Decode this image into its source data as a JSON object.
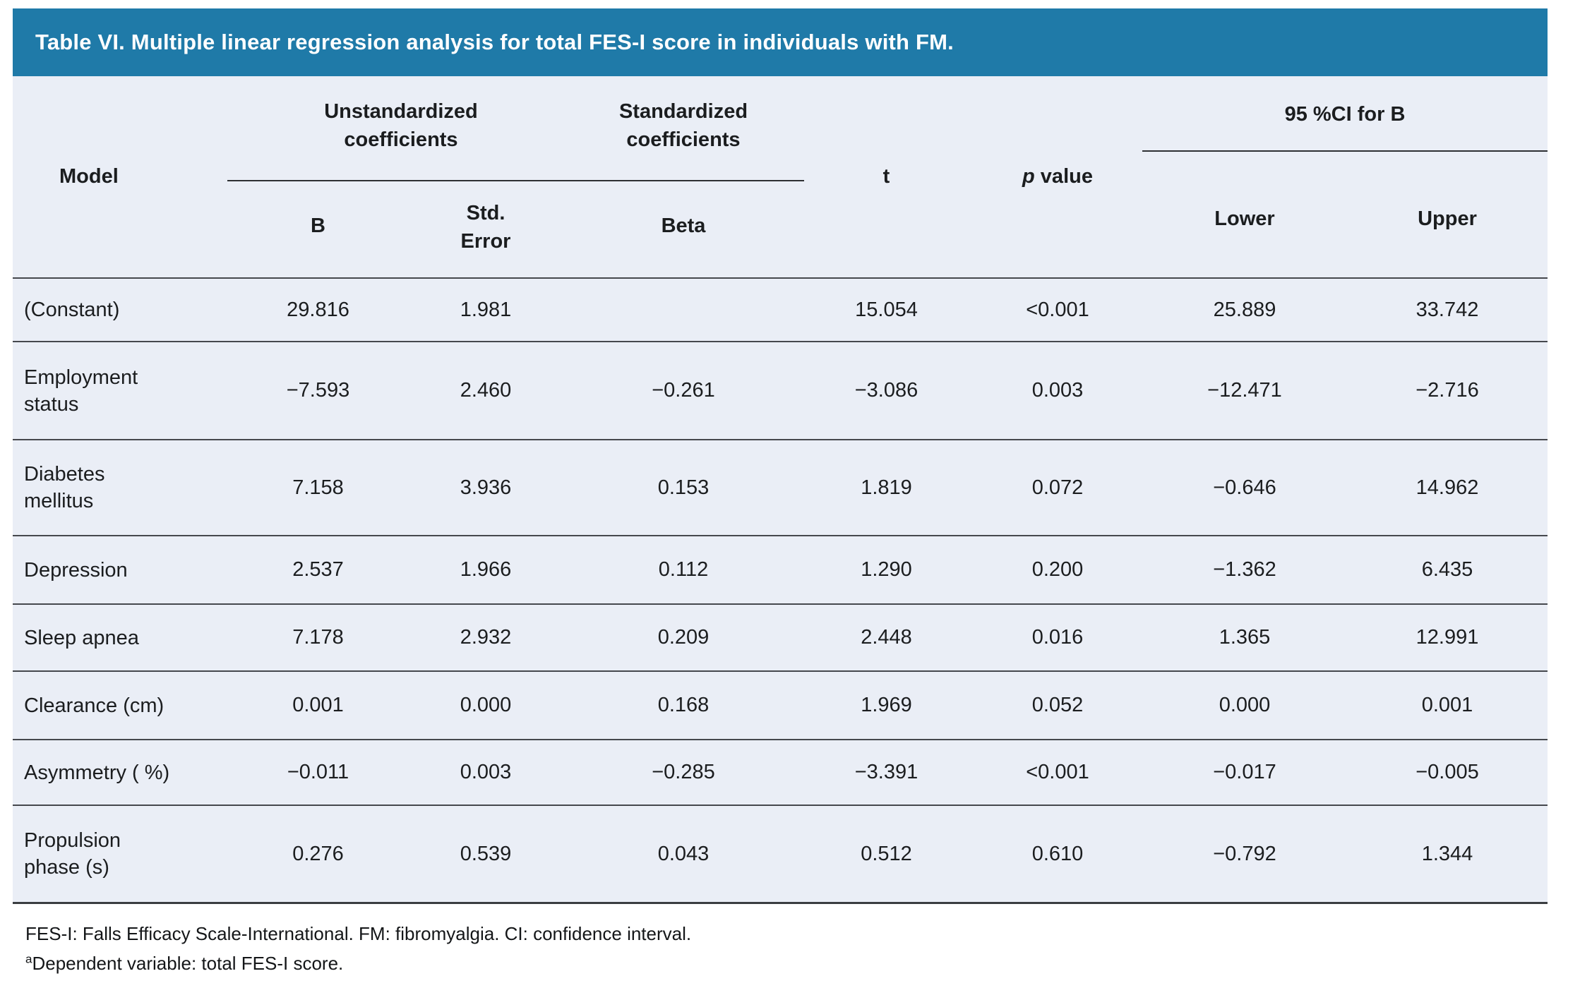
{
  "title": "Table VI. Multiple linear regression analysis for total FES-I score in individuals with FM.",
  "colors": {
    "accent_blue": "#1f7aa8",
    "table_background": "#eaeef6",
    "row_separator": "#45484d",
    "title_text": "#ffffff"
  },
  "header": {
    "model": "Model",
    "unstandardized_group": "Unstandardized\ncoefficients",
    "standardized_group": "Standardized\ncoefficients",
    "t": "t",
    "p_symbol": "p",
    "p_rest": " value",
    "ci_group": "95 %CI for B",
    "b": "B",
    "std_error": "Std.\nError",
    "beta": "Beta",
    "lower": "Lower",
    "upper": "Upper"
  },
  "chart_data": {
    "type": "table",
    "title": "Table VI. Multiple linear regression analysis for total FES-I score in individuals with FM.",
    "columns": [
      "Model",
      "B",
      "Std. Error",
      "Beta",
      "t",
      "p value",
      "95 %CI for B Lower",
      "95 %CI for B Upper"
    ],
    "rows": [
      [
        "(Constant)",
        "29.816",
        "1.981",
        "",
        "15.054",
        "<0.001",
        "25.889",
        "33.742"
      ],
      [
        "Employment status",
        "−7.593",
        "2.460",
        "−0.261",
        "−3.086",
        "0.003",
        "−12.471",
        "−2.716"
      ],
      [
        "Diabetes mellitus",
        "7.158",
        "3.936",
        "0.153",
        "1.819",
        "0.072",
        "−0.646",
        "14.962"
      ],
      [
        "Depression",
        "2.537",
        "1.966",
        "0.112",
        "1.290",
        "0.200",
        "−1.362",
        "6.435"
      ],
      [
        "Sleep apnea",
        "7.178",
        "2.932",
        "0.209",
        "2.448",
        "0.016",
        "1.365",
        "12.991"
      ],
      [
        "Clearance (cm)",
        "0.001",
        "0.000",
        "0.168",
        "1.969",
        "0.052",
        "0.000",
        "0.001"
      ],
      [
        "Asymmetry ( %)",
        "−0.011",
        "0.003",
        "−0.285",
        "−3.391",
        "<0.001",
        "−0.017",
        "−0.005"
      ],
      [
        "Propulsion phase (s)",
        "0.276",
        "0.539",
        "0.043",
        "0.512",
        "0.610",
        "−0.792",
        "1.344"
      ]
    ]
  },
  "rows": [
    {
      "label": "(Constant)",
      "b": "29.816",
      "se": "1.981",
      "beta": "",
      "t": "15.054",
      "p": "<0.001",
      "lower": "25.889",
      "upper": "33.742"
    },
    {
      "label": "Employment\nstatus",
      "b": "−7.593",
      "se": "2.460",
      "beta": "−0.261",
      "t": "−3.086",
      "p": "0.003",
      "lower": "−12.471",
      "upper": "−2.716"
    },
    {
      "label": "Diabetes\nmellitus",
      "b": "7.158",
      "se": "3.936",
      "beta": "0.153",
      "t": "1.819",
      "p": "0.072",
      "lower": "−0.646",
      "upper": "14.962"
    },
    {
      "label": "Depression",
      "b": "2.537",
      "se": "1.966",
      "beta": "0.112",
      "t": "1.290",
      "p": "0.200",
      "lower": "−1.362",
      "upper": "6.435"
    },
    {
      "label": "Sleep apnea",
      "b": "7.178",
      "se": "2.932",
      "beta": "0.209",
      "t": "2.448",
      "p": "0.016",
      "lower": "1.365",
      "upper": "12.991"
    },
    {
      "label": "Clearance (cm)",
      "b": "0.001",
      "se": "0.000",
      "beta": "0.168",
      "t": "1.969",
      "p": "0.052",
      "lower": "0.000",
      "upper": "0.001"
    },
    {
      "label": "Asymmetry ( %)",
      "b": "−0.011",
      "se": "0.003",
      "beta": "−0.285",
      "t": "−3.391",
      "p": "<0.001",
      "lower": "−0.017",
      "upper": "−0.005"
    },
    {
      "label": "Propulsion\nphase (s)",
      "b": "0.276",
      "se": "0.539",
      "beta": "0.043",
      "t": "0.512",
      "p": "0.610",
      "lower": "−0.792",
      "upper": "1.344"
    }
  ],
  "footnotes": {
    "abbreviations": "FES-I: Falls Efficacy Scale-International. FM: fibromyalgia. CI: confidence interval.",
    "dependent_sup": "a",
    "dependent": "Dependent variable: total FES-I score."
  }
}
